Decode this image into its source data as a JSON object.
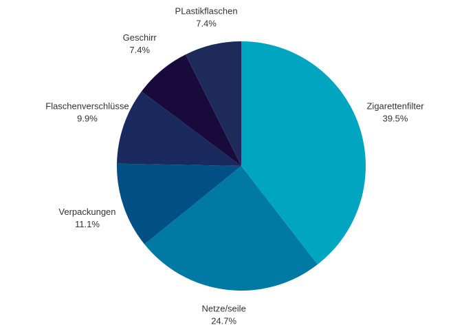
{
  "chart_data": {
    "type": "pie",
    "categories": [
      "Zigarettenfilter",
      "Netze/seile",
      "Verpackungen",
      "Flaschenverschlüsse",
      "Geschirr",
      "PLastikflaschen"
    ],
    "values": [
      39.5,
      24.7,
      11.1,
      9.9,
      7.4,
      7.4
    ],
    "value_labels": [
      "39.5%",
      "24.7%",
      "11.1%",
      "9.9%",
      "7.4%",
      "7.4%"
    ],
    "colors": [
      "#00a5c0",
      "#0079a4",
      "#004f85",
      "#1b2a5e",
      "#180a3a",
      "#1d2a5a"
    ]
  }
}
